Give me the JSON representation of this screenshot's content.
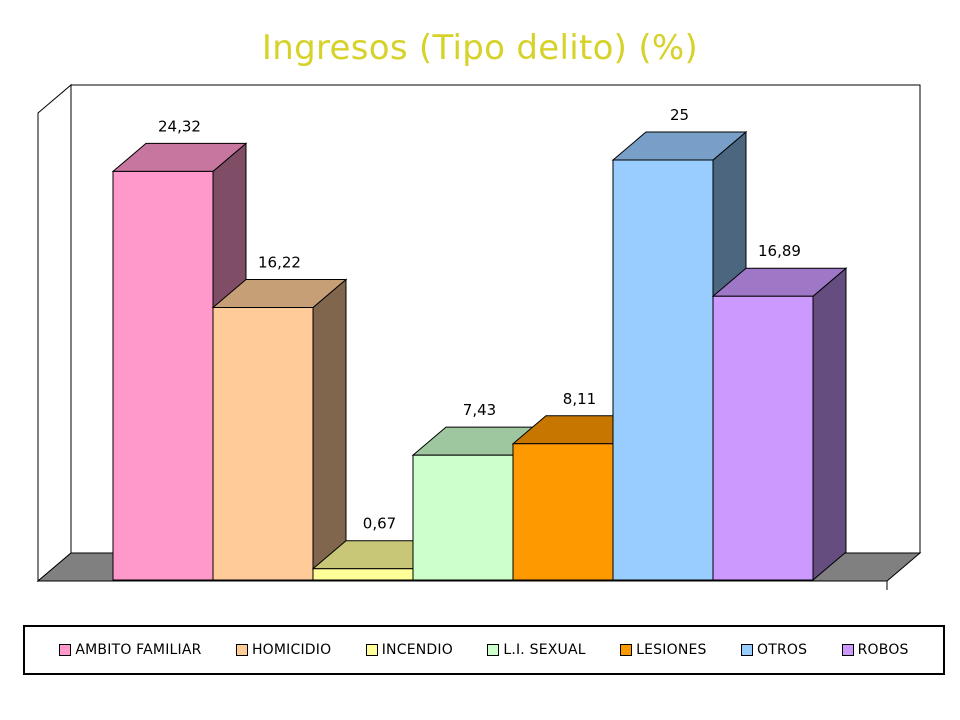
{
  "chart_data": {
    "type": "bar",
    "title": "Ingresos (Tipo delito) (%)",
    "categories": [
      "AMBITO FAMILIAR",
      "HOMICIDIO",
      "INCENDIO",
      "L.I. SEXUAL",
      "LESIONES",
      "OTROS",
      "ROBOS"
    ],
    "values": [
      24.32,
      16.22,
      0.67,
      7.43,
      8.11,
      25,
      16.89
    ],
    "value_labels": [
      "24,32",
      "16,22",
      "0,67",
      "7,43",
      "8,11",
      "25",
      "16,89"
    ],
    "colors": [
      "#ff99cc",
      "#ffcc99",
      "#ffff99",
      "#ccffcc",
      "#ff9900",
      "#99ccff",
      "#cc99ff"
    ],
    "ylim": [
      0,
      27.5
    ],
    "grid": false,
    "legend_position": "bottom",
    "style": "3d-columns"
  }
}
